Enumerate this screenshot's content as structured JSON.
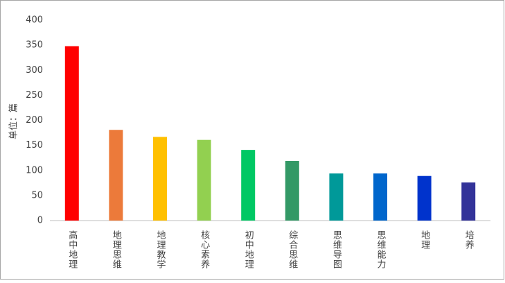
{
  "chart_data": {
    "type": "bar",
    "y_label": "单位：篇",
    "categories": [
      "高中地理",
      "地理思维",
      "地理教学",
      "核心素养",
      "初中地理",
      "综合思维",
      "思维导图",
      "思维能力",
      "地理",
      "培养"
    ],
    "values": [
      348,
      181,
      167,
      161,
      141,
      119,
      94,
      94,
      89,
      76
    ],
    "colors": [
      "#ff0000",
      "#ec7a3a",
      "#ffc000",
      "#92d050",
      "#00c864",
      "#339966",
      "#009999",
      "#0066cc",
      "#0033cc",
      "#333399"
    ],
    "ylim": [
      0,
      400
    ],
    "yticks": [
      0,
      50,
      100,
      150,
      200,
      250,
      300,
      350,
      400
    ],
    "grid": false
  }
}
